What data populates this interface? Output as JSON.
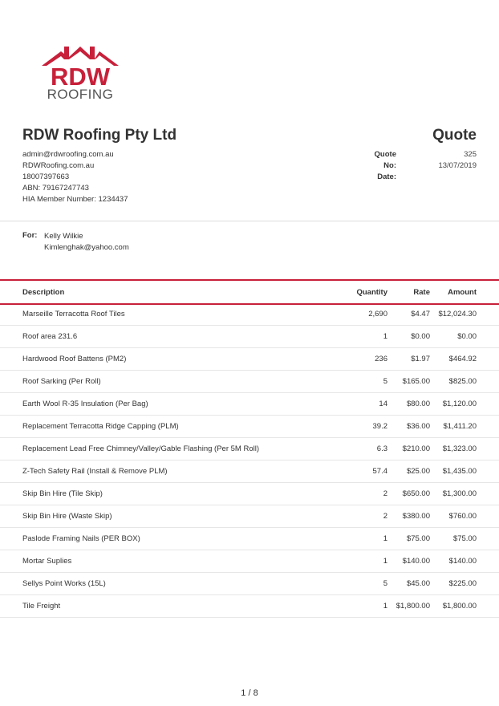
{
  "logo": {
    "line1": "RDW",
    "line2": "ROOFING"
  },
  "company": {
    "name": "RDW Roofing Pty Ltd",
    "email": "admin@rdwroofing.com.au",
    "website": "RDWRoofing.com.au",
    "phone": "18007397663",
    "abn": "ABN: 79167247743",
    "hia": "HIA Member Number: 1234437"
  },
  "document": {
    "title": "Quote",
    "quote_no_label": "Quote No:",
    "quote_no": "325",
    "date_label": "Date:",
    "date": "13/07/2019"
  },
  "client": {
    "label": "For:",
    "name": "Kelly Wilkie",
    "email": "Kimlenghak@yahoo.com"
  },
  "table": {
    "headers": {
      "description": "Description",
      "quantity": "Quantity",
      "rate": "Rate",
      "amount": "Amount"
    },
    "rows": [
      {
        "description": "Marseille Terracotta Roof Tiles",
        "quantity": "2,690",
        "rate": "$4.47",
        "amount": "$12,024.30"
      },
      {
        "description": "Roof area 231.6",
        "quantity": "1",
        "rate": "$0.00",
        "amount": "$0.00"
      },
      {
        "description": "Hardwood Roof Battens (PM2)",
        "quantity": "236",
        "rate": "$1.97",
        "amount": "$464.92"
      },
      {
        "description": "Roof Sarking (Per Roll)",
        "quantity": "5",
        "rate": "$165.00",
        "amount": "$825.00"
      },
      {
        "description": "Earth Wool R-35 Insulation (Per Bag)",
        "quantity": "14",
        "rate": "$80.00",
        "amount": "$1,120.00"
      },
      {
        "description": "Replacement Terracotta Ridge Capping (PLM)",
        "quantity": "39.2",
        "rate": "$36.00",
        "amount": "$1,411.20"
      },
      {
        "description": "Replacement Lead Free Chimney/Valley/Gable Flashing (Per 5M Roll)",
        "quantity": "6.3",
        "rate": "$210.00",
        "amount": "$1,323.00"
      },
      {
        "description": "Z-Tech Safety Rail (Install & Remove PLM)",
        "quantity": "57.4",
        "rate": "$25.00",
        "amount": "$1,435.00"
      },
      {
        "description": "Skip Bin Hire (Tile Skip)",
        "quantity": "2",
        "rate": "$650.00",
        "amount": "$1,300.00"
      },
      {
        "description": "Skip Bin Hire (Waste Skip)",
        "quantity": "2",
        "rate": "$380.00",
        "amount": "$760.00"
      },
      {
        "description": "Paslode Framing Nails (PER BOX)",
        "quantity": "1",
        "rate": "$75.00",
        "amount": "$75.00"
      },
      {
        "description": "Mortar Suplies",
        "quantity": "1",
        "rate": "$140.00",
        "amount": "$140.00"
      },
      {
        "description": "Sellys Point Works (15L)",
        "quantity": "5",
        "rate": "$45.00",
        "amount": "$225.00"
      },
      {
        "description": "Tile Freight",
        "quantity": "1",
        "rate": "$1,800.00",
        "amount": "$1,800.00"
      }
    ]
  },
  "footer": {
    "page": "1 / 8"
  },
  "colors": {
    "accent": "#c8203a",
    "logo_grey": "#555555"
  }
}
